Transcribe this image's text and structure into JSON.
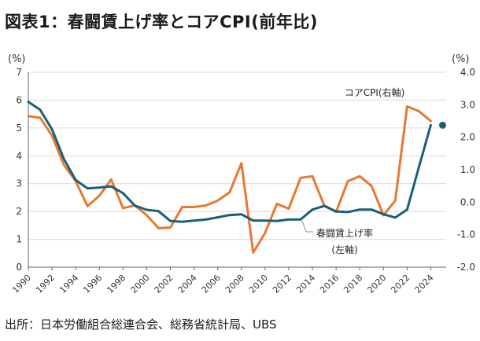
{
  "header": {
    "title": "図表1：春闘賃上げ率とコアCPI(前年比)"
  },
  "footer": {
    "source": "出所：日本労働組合総連合会、総務省統計局、UBS"
  },
  "chart_data": {
    "type": "line",
    "title": "図表1：春闘賃上げ率とコアCPI(前年比)",
    "x": [
      1990,
      1991,
      1992,
      1993,
      1994,
      1995,
      1996,
      1997,
      1998,
      1999,
      2000,
      2001,
      2002,
      2003,
      2004,
      2005,
      2006,
      2007,
      2008,
      2009,
      2010,
      2011,
      2012,
      2013,
      2014,
      2015,
      2016,
      2017,
      2018,
      2019,
      2020,
      2021,
      2022,
      2023,
      2024
    ],
    "x_ticks": [
      "1990",
      "1992",
      "1994",
      "1996",
      "1998",
      "2000",
      "2002",
      "2004",
      "2006",
      "2008",
      "2010",
      "2012",
      "2014",
      "2016",
      "2018",
      "2020",
      "2022",
      "2024"
    ],
    "left_axis": {
      "unit": "(%)",
      "ylim": [
        0,
        7
      ],
      "ticks": [
        "0",
        "1",
        "2",
        "3",
        "4",
        "5",
        "6",
        "7"
      ]
    },
    "right_axis": {
      "unit": "(%)",
      "ylim": [
        -2.0,
        4.0
      ],
      "ticks": [
        "-2.0",
        "-1.0",
        "0.0",
        "1.0",
        "2.0",
        "3.0",
        "4.0"
      ]
    },
    "grid": true,
    "series": [
      {
        "name": "春闘賃上げ率",
        "axis": "left",
        "color": "#1a5f7a",
        "label_lines": [
          "春闘賃上げ率",
          "(左軸)"
        ],
        "x": [
          1990,
          1991,
          1992,
          1993,
          1994,
          1995,
          1996,
          1997,
          1998,
          1999,
          2000,
          2001,
          2002,
          2003,
          2004,
          2005,
          2006,
          2007,
          2008,
          2009,
          2010,
          2011,
          2012,
          2013,
          2014,
          2015,
          2016,
          2017,
          2018,
          2019,
          2020,
          2021,
          2022,
          2023,
          2024
        ],
        "values": [
          5.94,
          5.65,
          4.95,
          3.89,
          3.13,
          2.83,
          2.86,
          2.9,
          2.66,
          2.21,
          2.06,
          2.01,
          1.66,
          1.63,
          1.67,
          1.71,
          1.79,
          1.87,
          1.9,
          1.67,
          1.67,
          1.66,
          1.71,
          1.71,
          2.07,
          2.2,
          2.0,
          1.98,
          2.07,
          2.07,
          1.9,
          1.78,
          2.07,
          3.6,
          5.1
        ],
        "endpoint": {
          "x": 2025,
          "value": 5.1
        }
      },
      {
        "name": "コアCPI(右軸)",
        "axis": "right",
        "color": "#e8782f",
        "label_lines": [
          "コアCPI(右軸)"
        ],
        "x": [
          1990,
          1991,
          1992,
          1993,
          1994,
          1995,
          1996,
          1997,
          1998,
          1999,
          2000,
          2001,
          2002,
          2003,
          2004,
          2005,
          2006,
          2007,
          2008,
          2009,
          2010,
          2011,
          2012,
          2013,
          2014,
          2015,
          2016,
          2017,
          2018,
          2019,
          2020,
          2021,
          2022,
          2023,
          2024
        ],
        "values": [
          2.65,
          2.6,
          2.05,
          1.15,
          0.65,
          -0.12,
          0.2,
          0.7,
          -0.18,
          -0.1,
          -0.4,
          -0.8,
          -0.78,
          -0.15,
          -0.15,
          -0.1,
          0.05,
          0.3,
          1.2,
          -1.55,
          -0.95,
          -0.05,
          -0.2,
          0.75,
          0.8,
          -0.1,
          -0.3,
          0.65,
          0.8,
          0.5,
          -0.4,
          0.05,
          2.95,
          2.8,
          2.5
        ]
      }
    ]
  }
}
